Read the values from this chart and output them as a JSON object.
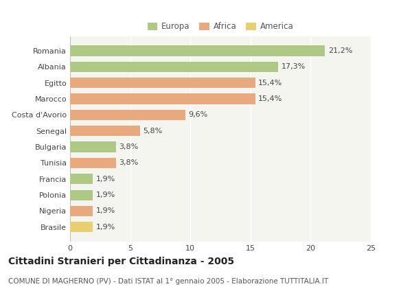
{
  "categories": [
    "Romania",
    "Albania",
    "Egitto",
    "Marocco",
    "Costa d'Avorio",
    "Senegal",
    "Bulgaria",
    "Tunisia",
    "Francia",
    "Polonia",
    "Nigeria",
    "Brasile"
  ],
  "values": [
    21.2,
    17.3,
    15.4,
    15.4,
    9.6,
    5.8,
    3.8,
    3.8,
    1.9,
    1.9,
    1.9,
    1.9
  ],
  "labels": [
    "21,2%",
    "17,3%",
    "15,4%",
    "15,4%",
    "9,6%",
    "5,8%",
    "3,8%",
    "3,8%",
    "1,9%",
    "1,9%",
    "1,9%",
    "1,9%"
  ],
  "colors": [
    "#adc985",
    "#adc985",
    "#e8a97e",
    "#e8a97e",
    "#e8a97e",
    "#e8a97e",
    "#adc985",
    "#e8a97e",
    "#adc985",
    "#adc985",
    "#e8a97e",
    "#e8d070"
  ],
  "legend_labels": [
    "Europa",
    "Africa",
    "America"
  ],
  "legend_colors": [
    "#adc985",
    "#e8a97e",
    "#e8d070"
  ],
  "xlim": [
    0,
    25
  ],
  "xticks": [
    0,
    5,
    10,
    15,
    20,
    25
  ],
  "title": "Cittadini Stranieri per Cittadinanza - 2005",
  "subtitle": "COMUNE DI MAGHERNO (PV) - Dati ISTAT al 1° gennaio 2005 - Elaborazione TUTTITALIA.IT",
  "bg_color": "#ffffff",
  "plot_bg_color": "#f5f5f0",
  "grid_color": "#ffffff",
  "bar_height": 0.65,
  "title_fontsize": 10,
  "subtitle_fontsize": 7.5,
  "label_fontsize": 8,
  "tick_fontsize": 8,
  "legend_fontsize": 8.5
}
